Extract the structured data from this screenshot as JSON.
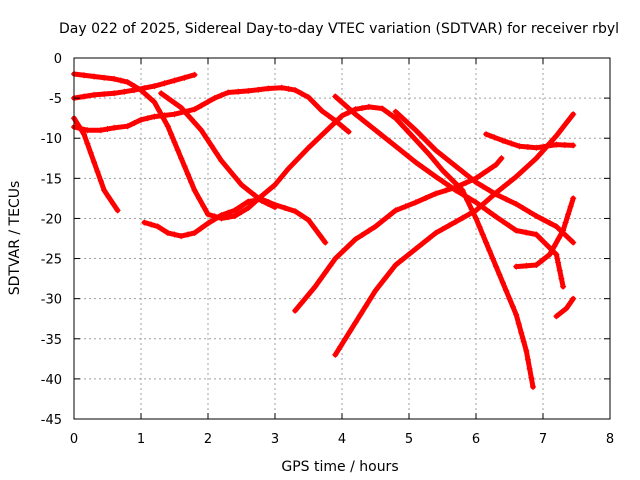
{
  "chart_data": {
    "type": "scatter",
    "title": "Day 022 of 2025, Sidereal Day-to-day VTEC variation (SDTVAR) for receiver rbyl",
    "xlabel": "GPS time / hours",
    "ylabel": "SDTVAR / TECUs",
    "xlim": [
      0,
      8
    ],
    "ylim": [
      -45,
      0
    ],
    "x_ticks": [
      0,
      1,
      2,
      3,
      4,
      5,
      6,
      7,
      8
    ],
    "y_ticks": [
      0,
      -5,
      -10,
      -15,
      -20,
      -25,
      -30,
      -35,
      -40,
      -45
    ],
    "x_tick_labels": [
      "0",
      "1",
      "2",
      "3",
      "4",
      "5",
      "6",
      "7",
      "8"
    ],
    "y_tick_labels": [
      "0",
      "-5",
      "-10",
      "-15",
      "-20",
      "-25",
      "-30",
      "-35",
      "-40",
      "-45"
    ],
    "grid": true,
    "marker": "plus",
    "color": "#ff0000",
    "series": [
      {
        "points": [
          [
            0.0,
            -5.0
          ],
          [
            0.3,
            -4.6
          ],
          [
            0.6,
            -4.4
          ],
          [
            0.9,
            -4.0
          ],
          [
            1.2,
            -3.5
          ],
          [
            1.5,
            -2.8
          ],
          [
            1.8,
            -2.1
          ]
        ]
      },
      {
        "points": [
          [
            0.0,
            -2.0
          ],
          [
            0.3,
            -2.3
          ],
          [
            0.6,
            -2.6
          ],
          [
            0.8,
            -3.0
          ],
          [
            1.0,
            -4.0
          ],
          [
            1.2,
            -5.5
          ],
          [
            1.4,
            -8.5
          ],
          [
            1.6,
            -12.5
          ],
          [
            1.8,
            -16.5
          ],
          [
            2.0,
            -19.5
          ],
          [
            2.2,
            -20.0
          ],
          [
            2.4,
            -19.7
          ],
          [
            2.6,
            -18.7
          ],
          [
            2.8,
            -17.2
          ],
          [
            3.0,
            -15.8
          ],
          [
            3.2,
            -13.8
          ],
          [
            3.5,
            -11.2
          ],
          [
            3.8,
            -8.8
          ],
          [
            4.0,
            -7.2
          ],
          [
            4.2,
            -6.4
          ],
          [
            4.4,
            -6.1
          ],
          [
            4.6,
            -6.3
          ],
          [
            4.8,
            -7.5
          ],
          [
            5.0,
            -9.3
          ],
          [
            5.3,
            -12.0
          ],
          [
            5.5,
            -14.0
          ],
          [
            5.8,
            -16.5
          ],
          [
            6.0,
            -20.0
          ],
          [
            6.2,
            -24.0
          ],
          [
            6.4,
            -28.0
          ],
          [
            6.6,
            -32.0
          ],
          [
            6.75,
            -36.5
          ],
          [
            6.85,
            -41.0
          ]
        ]
      },
      {
        "points": [
          [
            0.0,
            -8.6
          ],
          [
            0.2,
            -9.0
          ],
          [
            0.4,
            -9.0
          ],
          [
            0.6,
            -8.7
          ],
          [
            0.8,
            -8.5
          ],
          [
            1.0,
            -7.7
          ],
          [
            1.2,
            -7.3
          ],
          [
            1.5,
            -7.0
          ],
          [
            1.8,
            -6.4
          ],
          [
            2.1,
            -5.0
          ],
          [
            2.3,
            -4.3
          ],
          [
            2.6,
            -4.1
          ],
          [
            2.9,
            -3.8
          ],
          [
            3.1,
            -3.7
          ],
          [
            3.3,
            -4.0
          ],
          [
            3.5,
            -4.9
          ],
          [
            3.7,
            -6.6
          ],
          [
            3.9,
            -7.8
          ],
          [
            4.1,
            -9.2
          ]
        ]
      },
      {
        "points": [
          [
            0.0,
            -7.5
          ],
          [
            0.15,
            -9.5
          ],
          [
            0.3,
            -13.0
          ],
          [
            0.45,
            -16.5
          ],
          [
            0.65,
            -19.0
          ]
        ]
      },
      {
        "points": [
          [
            1.05,
            -20.5
          ],
          [
            1.25,
            -21.0
          ],
          [
            1.4,
            -21.8
          ],
          [
            1.6,
            -22.2
          ],
          [
            1.8,
            -21.8
          ],
          [
            2.0,
            -20.6
          ],
          [
            2.2,
            -19.6
          ],
          [
            2.4,
            -19.0
          ],
          [
            2.6,
            -17.9
          ],
          [
            2.8,
            -17.6
          ],
          [
            3.0,
            -18.3
          ],
          [
            3.3,
            -19.1
          ],
          [
            3.5,
            -20.2
          ],
          [
            3.75,
            -23.0
          ]
        ]
      },
      {
        "points": [
          [
            1.3,
            -4.4
          ],
          [
            1.6,
            -6.2
          ],
          [
            1.9,
            -9.0
          ],
          [
            2.2,
            -12.8
          ],
          [
            2.5,
            -15.8
          ],
          [
            2.8,
            -17.8
          ],
          [
            3.0,
            -18.6
          ]
        ]
      },
      {
        "points": [
          [
            3.3,
            -31.5
          ],
          [
            3.6,
            -28.5
          ],
          [
            3.9,
            -25.0
          ],
          [
            4.2,
            -22.6
          ],
          [
            4.5,
            -21.0
          ],
          [
            4.8,
            -19.0
          ],
          [
            5.1,
            -18.0
          ],
          [
            5.4,
            -16.9
          ],
          [
            5.7,
            -16.1
          ],
          [
            6.0,
            -15.0
          ],
          [
            6.3,
            -13.3
          ],
          [
            6.38,
            -12.5
          ]
        ]
      },
      {
        "points": [
          [
            3.9,
            -37.0
          ],
          [
            4.2,
            -33.0
          ],
          [
            4.5,
            -29.0
          ],
          [
            4.8,
            -25.8
          ],
          [
            5.1,
            -23.8
          ],
          [
            5.4,
            -21.8
          ],
          [
            5.7,
            -20.4
          ],
          [
            6.0,
            -19.0
          ],
          [
            6.3,
            -16.8
          ],
          [
            6.6,
            -14.8
          ],
          [
            6.9,
            -12.5
          ],
          [
            7.2,
            -9.7
          ],
          [
            7.45,
            -7.0
          ]
        ]
      },
      {
        "points": [
          [
            3.9,
            -4.8
          ],
          [
            4.2,
            -7.0
          ],
          [
            4.5,
            -9.0
          ],
          [
            4.8,
            -11.0
          ],
          [
            5.1,
            -13.0
          ],
          [
            5.4,
            -14.8
          ],
          [
            5.7,
            -16.5
          ],
          [
            6.0,
            -18.0
          ],
          [
            6.3,
            -19.8
          ],
          [
            6.6,
            -21.5
          ],
          [
            6.9,
            -22.0
          ],
          [
            7.2,
            -24.5
          ],
          [
            7.3,
            -28.5
          ]
        ]
      },
      {
        "points": [
          [
            4.8,
            -6.7
          ],
          [
            5.1,
            -9.0
          ],
          [
            5.4,
            -11.5
          ],
          [
            5.7,
            -13.5
          ],
          [
            6.0,
            -15.5
          ],
          [
            6.3,
            -17.0
          ],
          [
            6.6,
            -18.2
          ],
          [
            6.9,
            -19.7
          ],
          [
            7.2,
            -21.0
          ],
          [
            7.45,
            -23.0
          ]
        ]
      },
      {
        "points": [
          [
            6.15,
            -9.5
          ],
          [
            6.4,
            -10.3
          ],
          [
            6.65,
            -11.0
          ],
          [
            6.9,
            -11.2
          ],
          [
            7.2,
            -10.8
          ],
          [
            7.45,
            -10.9
          ]
        ]
      },
      {
        "points": [
          [
            6.6,
            -26.0
          ],
          [
            6.9,
            -25.8
          ],
          [
            7.1,
            -24.5
          ],
          [
            7.3,
            -21.5
          ],
          [
            7.45,
            -17.5
          ]
        ]
      },
      {
        "points": [
          [
            7.2,
            -32.2
          ],
          [
            7.35,
            -31.2
          ],
          [
            7.45,
            -30.0
          ]
        ]
      }
    ]
  }
}
